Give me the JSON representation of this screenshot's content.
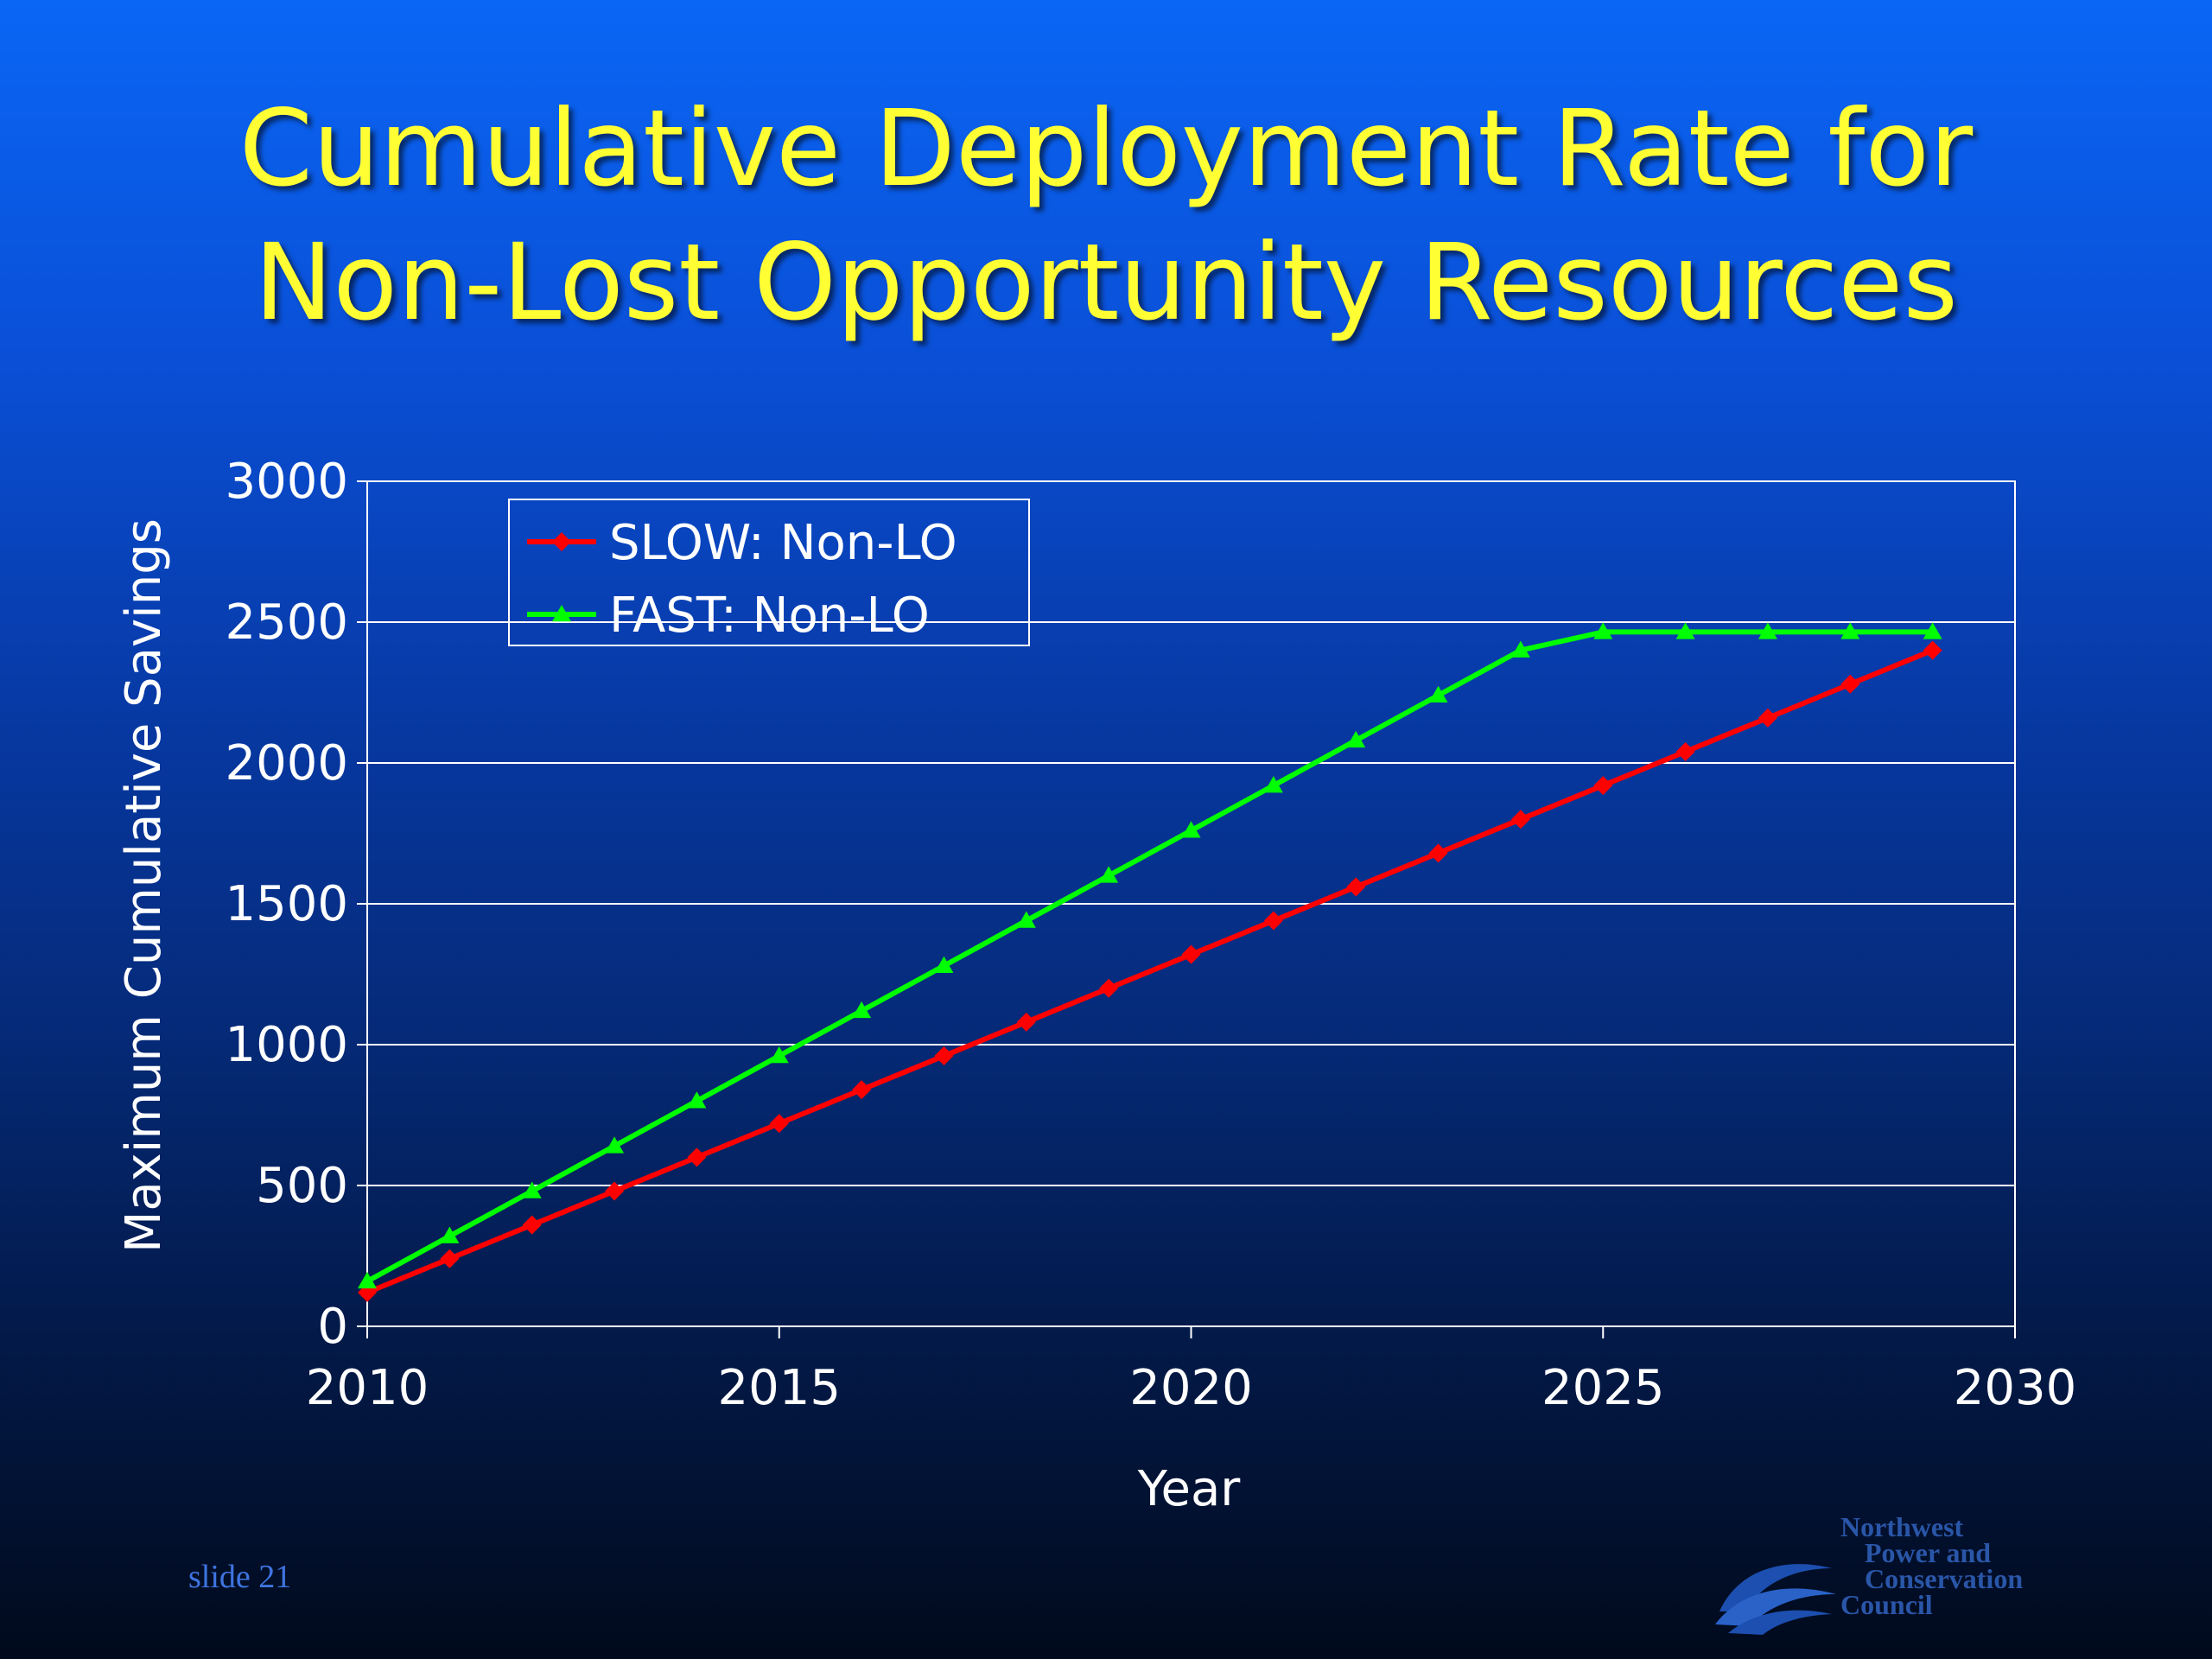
{
  "slide": {
    "title_line1": "Cumulative Deployment Rate for",
    "title_line2": "Non-Lost Opportunity Resources",
    "slide_number": "slide 21",
    "logo": {
      "line1": "Northwest",
      "line2": "Power and",
      "line3": "Conservation",
      "line4": "Council",
      "icon": "wave-emblem-icon"
    }
  },
  "chart_data": {
    "type": "line",
    "title": "",
    "xlabel": "Year",
    "ylabel": "Maximum Cumulative Savings",
    "xlim": [
      2010,
      2030
    ],
    "ylim": [
      0,
      3000
    ],
    "xticks": [
      2010,
      2015,
      2020,
      2025,
      2030
    ],
    "yticks": [
      0,
      500,
      1000,
      1500,
      2000,
      2500,
      3000
    ],
    "grid": "horizontal",
    "legend_position": "top-left",
    "x": [
      2010,
      2011,
      2012,
      2013,
      2014,
      2015,
      2016,
      2017,
      2018,
      2019,
      2020,
      2021,
      2022,
      2023,
      2024,
      2025,
      2026,
      2027,
      2028,
      2029
    ],
    "series": [
      {
        "name": "SLOW: Non-LO",
        "color": "#ff0000",
        "marker": "diamond",
        "values": [
          120,
          240,
          360,
          480,
          600,
          720,
          840,
          960,
          1080,
          1200,
          1320,
          1440,
          1560,
          1680,
          1800,
          1920,
          2040,
          2160,
          2280,
          2400
        ]
      },
      {
        "name": "FAST: Non-LO",
        "color": "#00ff00",
        "marker": "triangle",
        "values": [
          160,
          320,
          480,
          640,
          800,
          960,
          1120,
          1280,
          1440,
          1600,
          1760,
          1920,
          2080,
          2240,
          2400,
          2465,
          2465,
          2465,
          2465,
          2465
        ]
      }
    ]
  }
}
